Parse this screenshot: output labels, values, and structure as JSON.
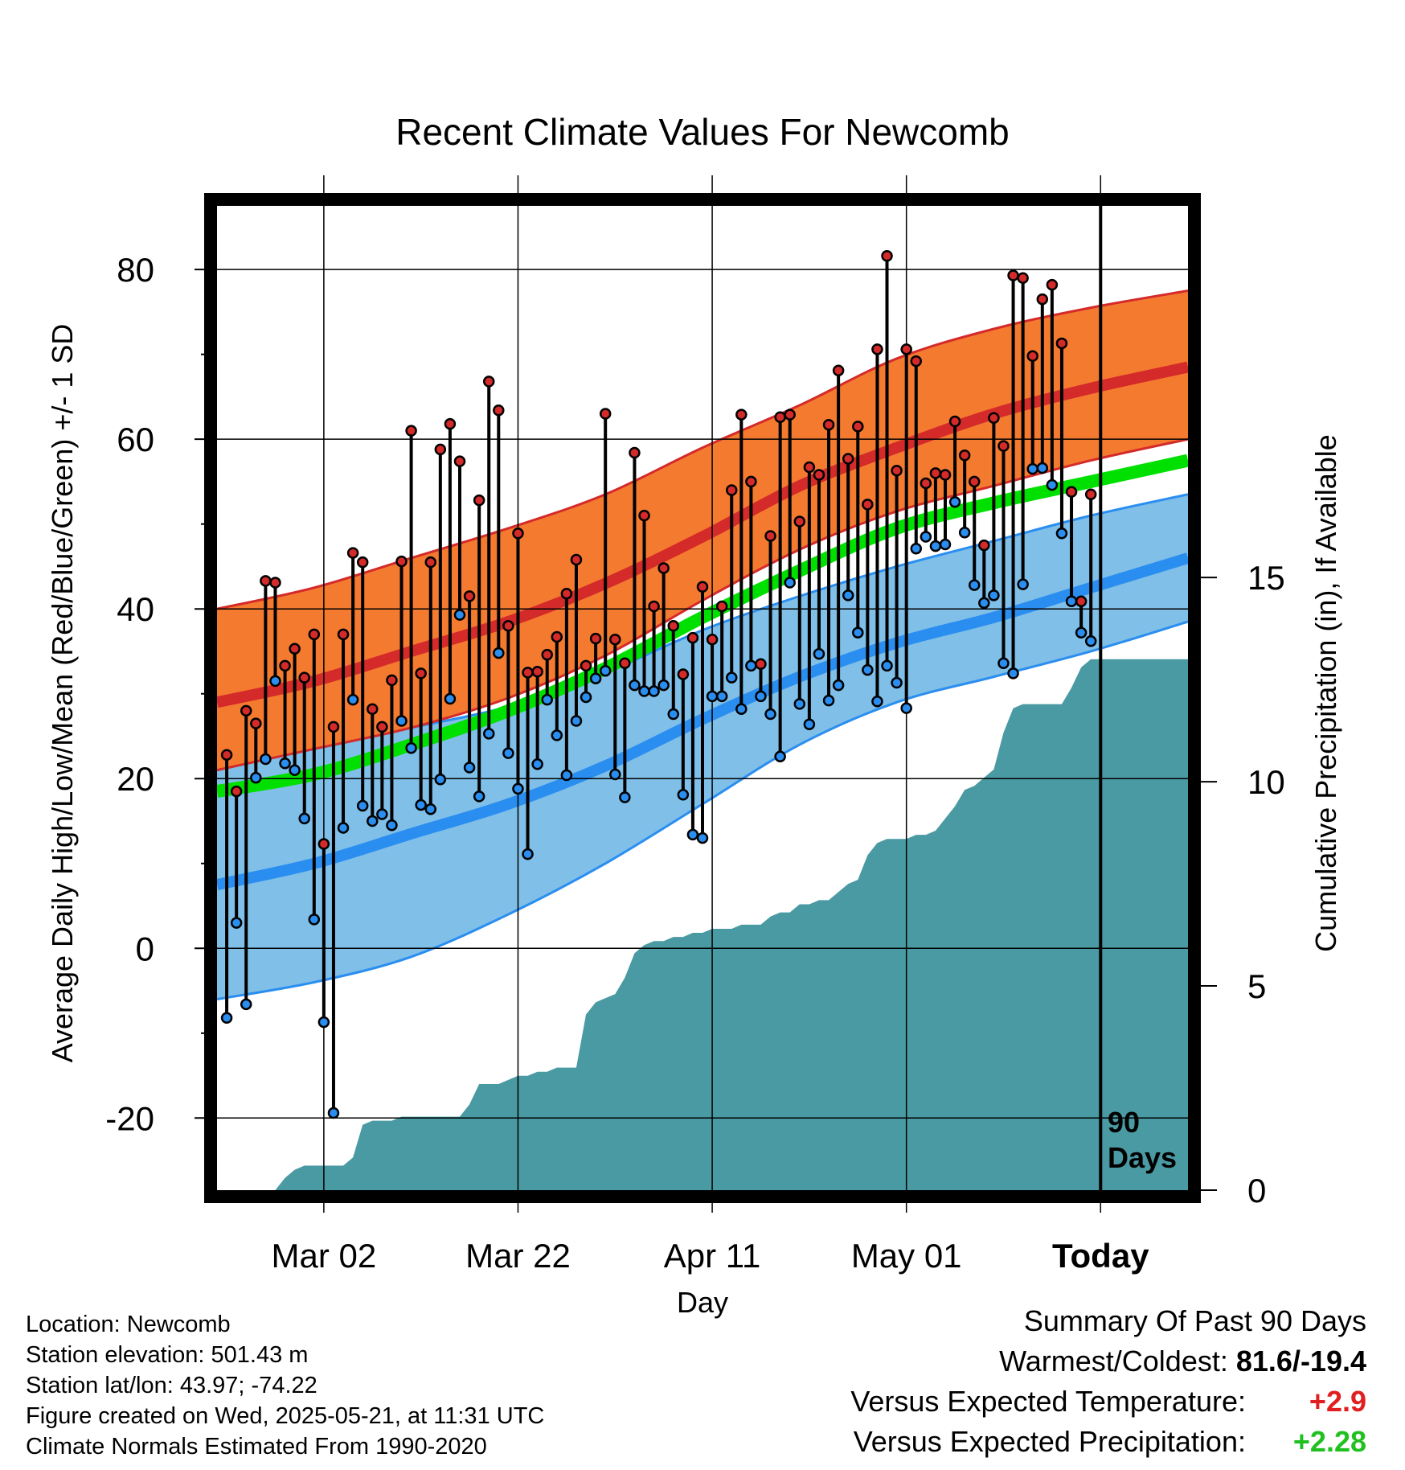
{
  "chart_data": {
    "type": "line",
    "title": "Recent Climate Values For Newcomb",
    "xlabel": "Day",
    "ylabel": "Average Daily High/Low/Mean (Red/Blue/Green) +/- 1 SD",
    "y2label": "Cumulative Precipitation (in), If Available",
    "ylim": [
      -28.5,
      87.5
    ],
    "y2lim": [
      0,
      24.1
    ],
    "yticks": [
      -20,
      0,
      20,
      40,
      60,
      80
    ],
    "y2ticks": [
      0,
      5,
      10,
      15
    ],
    "x_tick_labels": [
      {
        "day": 11,
        "label": "Mar 02"
      },
      {
        "day": 31,
        "label": "Mar 22"
      },
      {
        "day": 51,
        "label": "Apr 11"
      },
      {
        "day": 71,
        "label": "May 01"
      },
      {
        "day": 91,
        "label": "Today"
      }
    ],
    "today_day": 91,
    "period_label": [
      "90",
      "Days"
    ],
    "grid": true,
    "colors": {
      "high_band": "#f47a30",
      "high_mean": "#d42a2a",
      "low_band": "#7fbfe8",
      "low_mean": "#2a8ef0",
      "mean_normal": "#00e000",
      "precip": "#4a9aa3",
      "high_marker": "#d42a2a",
      "low_marker": "#2a8ef0"
    },
    "normals": {
      "days": [
        0,
        10,
        20,
        30,
        40,
        50,
        60,
        70,
        80,
        90,
        100
      ],
      "high_upper": [
        40,
        42.5,
        46,
        49.5,
        53.5,
        59,
        64,
        69.5,
        73,
        75.5,
        77.5
      ],
      "high_mean": [
        29,
        31.5,
        35,
        38.5,
        43,
        48.5,
        54.5,
        59,
        63,
        66,
        68.5
      ],
      "high_lower": [
        21,
        23.5,
        26,
        29.5,
        34.5,
        41,
        47,
        51.5,
        54.5,
        57.5,
        60
      ],
      "mean": [
        18.5,
        20.5,
        24,
        28,
        33,
        39,
        44.5,
        49.5,
        52.5,
        55,
        57.5
      ],
      "low_upper": [
        21.5,
        23.5,
        26,
        28.5,
        32.5,
        37.5,
        41.5,
        45,
        48,
        51,
        53.5
      ],
      "low_mean": [
        7.5,
        10,
        13.5,
        17,
        21.5,
        27,
        32,
        36,
        39,
        42.5,
        46
      ],
      "low_lower": [
        -6,
        -4,
        -1,
        4,
        10,
        17,
        24,
        29,
        32,
        35,
        38.5
      ]
    },
    "daily": {
      "days": [
        1,
        2,
        3,
        4,
        5,
        6,
        7,
        8,
        9,
        10,
        11,
        12,
        13,
        14,
        15,
        16,
        17,
        18,
        19,
        20,
        21,
        22,
        23,
        24,
        25,
        26,
        27,
        28,
        29,
        30,
        31,
        32,
        33,
        34,
        35,
        36,
        37,
        38,
        39,
        40,
        41,
        42,
        43,
        44,
        45,
        46,
        47,
        48,
        49,
        50,
        51,
        52,
        53,
        54,
        55,
        56,
        57,
        58,
        59,
        60,
        61,
        62,
        63,
        64,
        65,
        66,
        67,
        68,
        69,
        70,
        71,
        72,
        73,
        74,
        75,
        76,
        77,
        78,
        79,
        80,
        81,
        82,
        83,
        84,
        85,
        86,
        87,
        88,
        89,
        90
      ],
      "high": [
        22.8,
        18.5,
        28,
        26.5,
        43.3,
        43.1,
        33.3,
        35.3,
        31.9,
        37,
        12.3,
        26.1,
        37,
        46.6,
        45.5,
        28.2,
        26.1,
        31.6,
        45.6,
        61,
        32.4,
        45.5,
        58.8,
        61.8,
        57.4,
        41.5,
        52.8,
        66.8,
        63.4,
        38,
        48.9,
        32.5,
        32.6,
        34.6,
        36.7,
        41.8,
        45.8,
        33.3,
        36.5,
        63,
        36.4,
        33.6,
        58.4,
        51,
        40.3,
        44.8,
        38,
        32.3,
        36.6,
        42.6,
        36.4,
        40.3,
        54,
        62.9,
        55,
        33.5,
        48.6,
        62.6,
        62.9,
        50.3,
        56.7,
        55.8,
        61.7,
        68.1,
        57.7,
        61.5,
        52.3,
        70.6,
        81.6,
        56.3,
        70.6,
        69.2,
        54.8,
        56,
        55.8,
        62.1,
        58.1,
        55,
        47.5,
        62.5,
        59.2,
        79.3,
        79,
        69.8,
        76.5,
        78.2,
        71.3,
        53.8,
        40.9,
        53.5
      ],
      "low": [
        -8.2,
        3,
        -6.6,
        20.1,
        22.3,
        31.5,
        21.8,
        21,
        15.3,
        3.4,
        -8.7,
        -19.4,
        14.2,
        29.3,
        16.8,
        15,
        15.8,
        14.5,
        26.8,
        23.6,
        16.9,
        16.4,
        19.9,
        29.4,
        39.3,
        21.3,
        17.9,
        25.3,
        34.8,
        23,
        18.8,
        11.1,
        21.7,
        29.3,
        25.1,
        20.4,
        26.8,
        29.6,
        31.8,
        32.7,
        20.5,
        17.8,
        31,
        30.3,
        30.3,
        31,
        27.6,
        18.1,
        13.4,
        13,
        29.7,
        29.7,
        31.9,
        28.2,
        33.3,
        29.7,
        27.6,
        22.6,
        43.1,
        28.8,
        26.4,
        34.7,
        29.2,
        31,
        41.6,
        37.2,
        32.8,
        29.1,
        33.3,
        31.3,
        28.3,
        47.1,
        48.5,
        47.4,
        47.6,
        52.6,
        49,
        42.8,
        40.7,
        41.6,
        33.6,
        32.4,
        42.9,
        56.5,
        56.6,
        54.6,
        48.9,
        40.9,
        37.2,
        36.2
      ]
    },
    "precip_cumulative": {
      "days": [
        0,
        6,
        7,
        8,
        9,
        10,
        11,
        12,
        13,
        14,
        15,
        16,
        17,
        18,
        19,
        20,
        21,
        22,
        23,
        24,
        25,
        26,
        27,
        28,
        29,
        30,
        31,
        32,
        33,
        34,
        35,
        36,
        37,
        38,
        39,
        40,
        41,
        42,
        43,
        44,
        45,
        46,
        47,
        48,
        49,
        50,
        51,
        52,
        53,
        54,
        55,
        56,
        57,
        58,
        59,
        60,
        61,
        62,
        63,
        64,
        65,
        66,
        67,
        68,
        69,
        70,
        71,
        72,
        73,
        74,
        75,
        76,
        77,
        78,
        79,
        80,
        81,
        82,
        83,
        84,
        85,
        86,
        87,
        88,
        89,
        90,
        91,
        92,
        100
      ],
      "values": [
        0,
        0,
        0.3,
        0.5,
        0.6,
        0.6,
        0.6,
        0.6,
        0.6,
        0.8,
        1.6,
        1.7,
        1.7,
        1.7,
        1.8,
        1.8,
        1.8,
        1.8,
        1.8,
        1.8,
        1.8,
        2.1,
        2.6,
        2.6,
        2.6,
        2.7,
        2.8,
        2.8,
        2.9,
        2.9,
        3,
        3,
        3,
        4.3,
        4.6,
        4.7,
        4.8,
        5.2,
        5.8,
        6,
        6.1,
        6.1,
        6.2,
        6.2,
        6.3,
        6.3,
        6.4,
        6.4,
        6.4,
        6.5,
        6.5,
        6.5,
        6.7,
        6.8,
        6.8,
        7.0,
        7.0,
        7.1,
        7.1,
        7.3,
        7.5,
        7.6,
        8.2,
        8.5,
        8.6,
        8.6,
        8.6,
        8.7,
        8.7,
        8.8,
        9.1,
        9.4,
        9.8,
        9.9,
        10.1,
        10.3,
        11.2,
        11.8,
        11.9,
        11.9,
        11.9,
        11.9,
        11.9,
        12.3,
        12.8,
        13.0,
        13.0,
        13.0,
        13.0
      ]
    }
  },
  "footer": {
    "location": "Location: Newcomb",
    "elevation": "Station elevation: 501.43 m",
    "latlon": "Station lat/lon: 43.97; -74.22",
    "created": "Figure created on Wed, 2025-05-21, at 11:31 UTC",
    "normals": "Climate Normals Estimated From 1990-2020"
  },
  "summary": {
    "heading": "Summary Of Past 90 Days",
    "warm_cold_label": "Warmest/Coldest:",
    "warm_cold_value": "81.6/-19.4",
    "temp_label": "Versus Expected Temperature:",
    "temp_value": "+2.9",
    "temp_color": "#e02020",
    "precip_label": "Versus Expected Precipitation:",
    "precip_value": "+2.28",
    "precip_color": "#20c020"
  }
}
